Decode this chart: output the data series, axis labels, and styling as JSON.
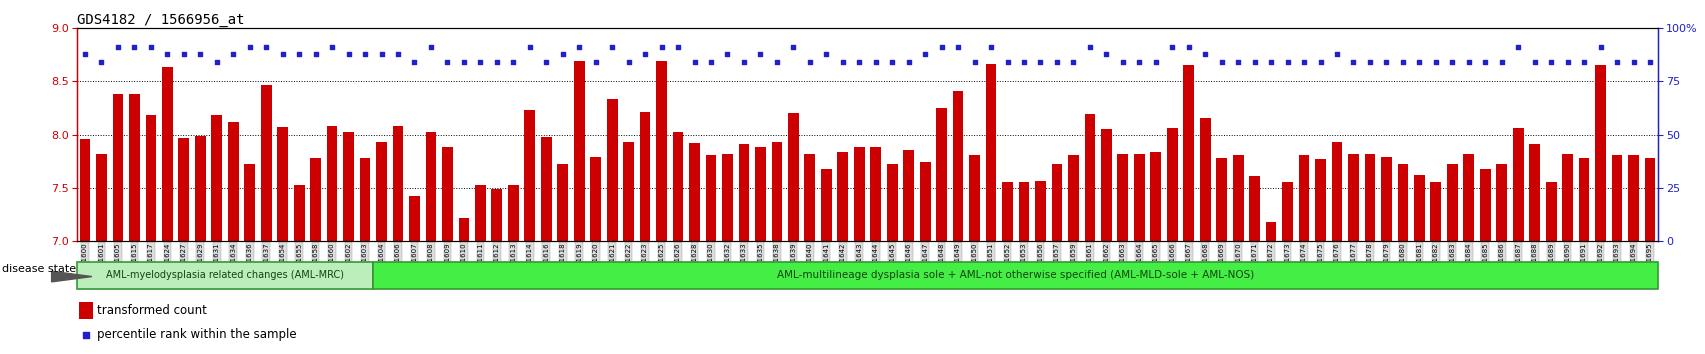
{
  "title": "GDS4182 / 1566956_at",
  "ylim_left": [
    7,
    9
  ],
  "ylim_right": [
    0,
    100
  ],
  "yticks_left": [
    7,
    7.5,
    8,
    8.5,
    9
  ],
  "yticks_right": [
    0,
    25,
    50,
    75,
    100
  ],
  "ytick_right_labels": [
    "0",
    "25",
    "50",
    "75",
    "100%"
  ],
  "bar_color": "#CC0000",
  "dot_color": "#2020CC",
  "bar_baseline": 7.0,
  "samples": [
    "GSM531600",
    "GSM531601",
    "GSM531605",
    "GSM531615",
    "GSM531617",
    "GSM531624",
    "GSM531627",
    "GSM531629",
    "GSM531631",
    "GSM531634",
    "GSM531636",
    "GSM531637",
    "GSM531654",
    "GSM531655",
    "GSM531658",
    "GSM531660",
    "GSM531602",
    "GSM531603",
    "GSM531604",
    "GSM531606",
    "GSM531607",
    "GSM531608",
    "GSM531609",
    "GSM531610",
    "GSM531611",
    "GSM531612",
    "GSM531613",
    "GSM531614",
    "GSM531616",
    "GSM531618",
    "GSM531619",
    "GSM531620",
    "GSM531621",
    "GSM531622",
    "GSM531623",
    "GSM531625",
    "GSM531626",
    "GSM531628",
    "GSM531630",
    "GSM531632",
    "GSM531633",
    "GSM531635",
    "GSM531638",
    "GSM531639",
    "GSM531640",
    "GSM531641",
    "GSM531642",
    "GSM531643",
    "GSM531644",
    "GSM531645",
    "GSM531646",
    "GSM531647",
    "GSM531648",
    "GSM531649",
    "GSM531650",
    "GSM531651",
    "GSM531652",
    "GSM531653",
    "GSM531656",
    "GSM531657",
    "GSM531659",
    "GSM531661",
    "GSM531662",
    "GSM531663",
    "GSM531664",
    "GSM531665",
    "GSM531666",
    "GSM531667",
    "GSM531668",
    "GSM531669",
    "GSM531670",
    "GSM531671",
    "GSM531672",
    "GSM531673",
    "GSM531674",
    "GSM531675",
    "GSM531676",
    "GSM531677",
    "GSM531678",
    "GSM531679",
    "GSM531680",
    "GSM531681",
    "GSM531682",
    "GSM531683",
    "GSM531684",
    "GSM531685",
    "GSM531686",
    "GSM531687",
    "GSM531688",
    "GSM531689",
    "GSM531690",
    "GSM531691",
    "GSM531692",
    "GSM531693",
    "GSM531694",
    "GSM531695"
  ],
  "bar_heights": [
    7.96,
    7.82,
    8.38,
    8.38,
    8.18,
    8.64,
    7.97,
    7.99,
    8.18,
    8.12,
    7.72,
    8.47,
    8.07,
    7.52,
    7.78,
    8.08,
    8.02,
    7.78,
    7.93,
    8.08,
    7.42,
    8.02,
    7.88,
    7.21,
    7.52,
    7.49,
    7.52,
    8.23,
    7.98,
    7.72,
    8.69,
    7.79,
    8.33,
    7.93,
    8.21,
    8.69,
    8.02,
    7.92,
    7.81,
    7.82,
    7.91,
    7.88,
    7.93,
    8.2,
    7.82,
    7.68,
    7.84,
    7.88,
    7.88,
    7.72,
    7.85,
    7.74,
    8.25,
    8.41,
    7.81,
    8.66,
    7.55,
    7.55,
    7.56,
    7.72,
    7.81,
    8.19,
    8.05,
    7.82,
    7.82,
    7.84,
    8.06,
    8.65,
    8.16,
    7.78,
    7.81,
    7.61,
    7.18,
    7.55,
    7.81,
    7.77,
    7.93,
    7.82,
    7.82,
    7.79,
    7.72,
    7.62,
    7.55,
    7.72,
    7.82,
    7.68,
    7.72,
    8.06,
    7.91,
    7.55,
    7.82,
    7.78,
    8.65,
    7.81,
    7.81,
    7.78
  ],
  "percentile_values": [
    88,
    84,
    91,
    91,
    91,
    88,
    88,
    88,
    84,
    88,
    91,
    91,
    88,
    88,
    88,
    91,
    88,
    88,
    88,
    88,
    84,
    91,
    84,
    84,
    84,
    84,
    84,
    91,
    84,
    88,
    91,
    84,
    91,
    84,
    88,
    91,
    91,
    84,
    84,
    88,
    84,
    88,
    84,
    91,
    84,
    88,
    84,
    84,
    84,
    84,
    84,
    88,
    91,
    91,
    84,
    91,
    84,
    84,
    84,
    84,
    84,
    91,
    88,
    84,
    84,
    84,
    91,
    91,
    88,
    84,
    84,
    84,
    84,
    84,
    84,
    84,
    88,
    84,
    84,
    84,
    84,
    84,
    84,
    84,
    84,
    84,
    84,
    91,
    84,
    84,
    84,
    84,
    91,
    84,
    84,
    84
  ],
  "group1_count": 18,
  "group1_label": "AML-myelodysplasia related changes (AML-MRC)",
  "group1_color": "#BBEEBB",
  "group2_label": "AML-multilineage dysplasia sole + AML-not otherwise specified (AML-MLD-sole + AML-NOS)",
  "group2_color": "#44EE44",
  "disease_state_label": "disease state",
  "legend_bar_label": "transformed count",
  "legend_dot_label": "percentile rank within the sample"
}
